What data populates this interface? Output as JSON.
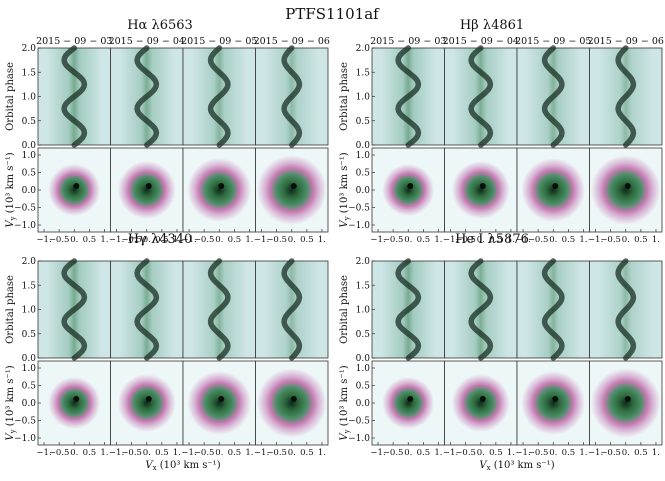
{
  "title": "PTFS1101af",
  "dates": [
    "2015 − 09 − 03",
    "2015 − 09 − 04",
    "2015 − 09 − 05",
    "2015 − 09 − 06"
  ],
  "colors": {
    "trail_bg": "#cfe6e6",
    "trail_dark": "#1a2f24",
    "trail_green": "#2f7a4a",
    "map_bg": "#eef7f7",
    "ring_pink": "#c47ab0",
    "ring_green": "#2e6b3e",
    "map_dark": "#0f2a1c"
  },
  "chart_data": [
    {
      "type": "heatmap",
      "name": "Hα λ6563",
      "label_text": "Hα λ6563",
      "show_dates": true,
      "trail": {
        "ylabel": "Orbital phase",
        "yticks": [
          "0.0",
          "0.5",
          "1.0",
          "1.5",
          "2.0"
        ],
        "ylim": [
          0,
          2.0
        ]
      },
      "doppler": {
        "ylabel": "Vy (10³ km s⁻¹)",
        "ylabel_main": "V",
        "ylabel_sub": "y",
        "ylabel_units": "(10³ km s⁻¹)",
        "yticks": [
          "1.0",
          "0.5",
          "0.0",
          "−0.5",
          "−1.0"
        ],
        "xticks": [
          "−1.",
          "−0.5",
          "0.",
          "0.5",
          "1."
        ],
        "xlabel": "",
        "lim": [
          -1.2,
          1.2
        ]
      }
    },
    {
      "type": "heatmap",
      "name": "Hβ λ4861",
      "label_text": "Hβ λ4861",
      "show_dates": true,
      "trail": {
        "ylabel": "Orbital phase",
        "yticks": [
          "0.0",
          "0.5",
          "1.0",
          "1.5",
          "2.0"
        ],
        "ylim": [
          0,
          2.0
        ]
      },
      "doppler": {
        "ylabel": "Vy (10³ km s⁻¹)",
        "ylabel_main": "V",
        "ylabel_sub": "y",
        "ylabel_units": "(10³ km s⁻¹)",
        "yticks": [
          "1.0",
          "0.5",
          "0.0",
          "−0.5",
          "−1.0"
        ],
        "xticks": [
          "−1.",
          "−0.5",
          "0.",
          "0.5",
          "1."
        ],
        "xlabel": "",
        "lim": [
          -1.2,
          1.2
        ]
      }
    },
    {
      "type": "heatmap",
      "name": "Hγ λ4340",
      "label_text": "Hγ λ4340",
      "show_dates": false,
      "trail": {
        "ylabel": "Orbital phase",
        "yticks": [
          "0.0",
          "0.5",
          "1.0",
          "1.5",
          "2.0"
        ],
        "ylim": [
          0,
          2.0
        ]
      },
      "doppler": {
        "ylabel": "Vy (10³ km s⁻¹)",
        "ylabel_main": "V",
        "ylabel_sub": "y",
        "ylabel_units": "(10³ km s⁻¹)",
        "yticks": [
          "1.0",
          "0.5",
          "0.0",
          "−0.5",
          "−1.0"
        ],
        "xticks": [
          "−1.",
          "−0.5",
          "0.",
          "0.5",
          "1."
        ],
        "xlabel": "Vx (10³ km s⁻¹)",
        "xlabel_main": "V",
        "xlabel_sub": "x",
        "xlabel_units": "(10³ km s⁻¹)",
        "lim": [
          -1.2,
          1.2
        ]
      }
    },
    {
      "type": "heatmap",
      "name": "He I λ5876",
      "label_text": "He I λ5876",
      "show_dates": false,
      "trail": {
        "ylabel": "Orbital phase",
        "yticks": [
          "0.0",
          "0.5",
          "1.0",
          "1.5",
          "2.0"
        ],
        "ylim": [
          0,
          2.0
        ]
      },
      "doppler": {
        "ylabel": "Vy (10³ km s⁻¹)",
        "ylabel_main": "V",
        "ylabel_sub": "y",
        "ylabel_units": "(10³ km s⁻¹)",
        "yticks": [
          "1.0",
          "0.5",
          "0.0",
          "−0.5",
          "−1.0"
        ],
        "xticks": [
          "−1.",
          "−0.5",
          "0.",
          "0.5",
          "1."
        ],
        "xlabel": "Vx (10³ km s⁻¹)",
        "xlabel_main": "V",
        "xlabel_sub": "x",
        "xlabel_units": "(10³ km s⁻¹)",
        "lim": [
          -1.2,
          1.2
        ]
      }
    }
  ]
}
